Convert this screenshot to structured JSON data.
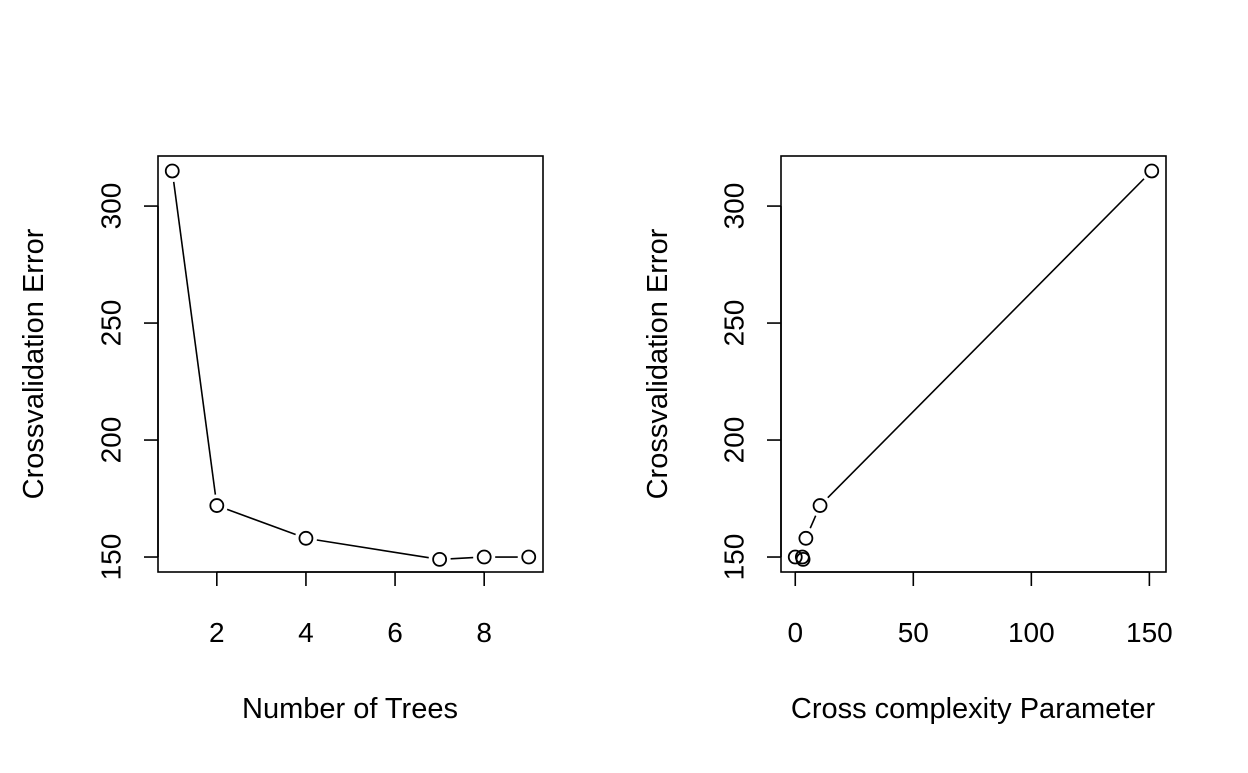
{
  "chart_data": [
    {
      "type": "line",
      "title": "",
      "xlabel": "Number of Trees",
      "ylabel": "Crossvalidation Error",
      "x": [
        1,
        2,
        4,
        7,
        8,
        9
      ],
      "series": [
        {
          "values": [
            315,
            172,
            158,
            149,
            150,
            150
          ]
        }
      ],
      "xlim": [
        0.68,
        9.32
      ],
      "ylim": [
        143.6,
        321.4
      ],
      "xticks": [
        2,
        4,
        6,
        8
      ],
      "yticks": [
        150,
        200,
        250,
        300
      ],
      "line_style": "b",
      "point_marker": "open-circle",
      "grid": false,
      "legend": "none"
    },
    {
      "type": "line",
      "title": "",
      "xlabel": "Cross complexity Parameter",
      "ylabel": "Crossvalidation Error",
      "x": [
        0,
        3,
        3.3,
        4.5,
        10.5,
        151
      ],
      "series": [
        {
          "values": [
            150,
            150,
            149,
            158,
            172,
            315
          ]
        }
      ],
      "xlim": [
        -6.04,
        157.04
      ],
      "ylim": [
        143.6,
        321.4
      ],
      "xticks": [
        0,
        50,
        100,
        150
      ],
      "yticks": [
        150,
        200,
        250,
        300
      ],
      "line_style": "b",
      "point_marker": "open-circle",
      "grid": false,
      "legend": "none"
    }
  ]
}
